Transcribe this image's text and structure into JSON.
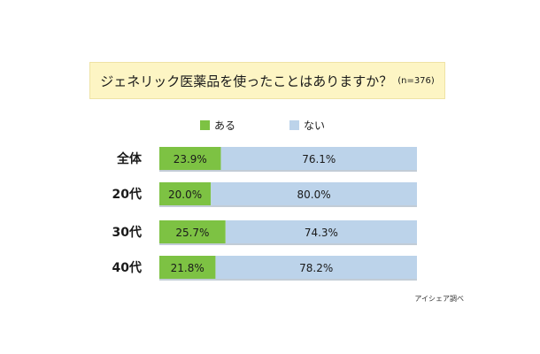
{
  "chart_data": {
    "type": "bar",
    "stacked": true,
    "orientation": "horizontal",
    "title": "ジェネリック医薬品を使ったことはありますか？",
    "title_note": "(n=376)",
    "categories": [
      "全体",
      "20代",
      "30代",
      "40代"
    ],
    "series": [
      {
        "name": "ある",
        "values": [
          23.9,
          20.0,
          25.7,
          21.8
        ],
        "color": "#7dc243"
      },
      {
        "name": "ない",
        "values": [
          76.1,
          80.0,
          74.3,
          78.2
        ],
        "color": "#bcd3ea"
      }
    ],
    "value_labels": [
      [
        "23.9%",
        "20.0%",
        "25.7%",
        "21.8%"
      ],
      [
        "76.1%",
        "80.0%",
        "74.3%",
        "78.2%"
      ]
    ],
    "xlim": [
      0,
      100
    ],
    "legend_position": "top-center",
    "grid": false
  },
  "source_note": "アイシェア調べ"
}
